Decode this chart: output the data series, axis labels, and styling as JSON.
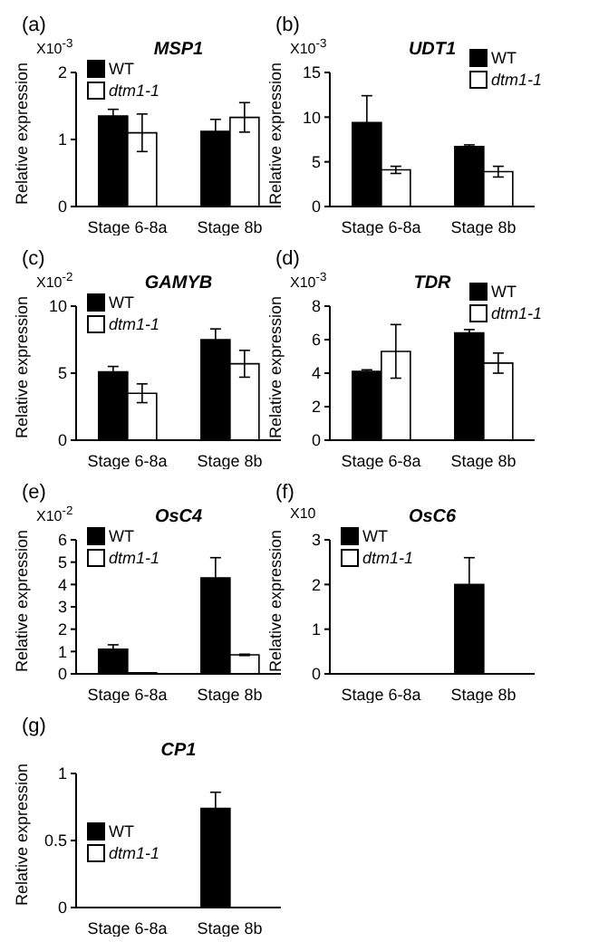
{
  "chart_data": [
    {
      "type": "bar",
      "title": "MSP1",
      "ylabel": "Relative expression",
      "annotations": [
        "(a)",
        "X10$^{-3}$"
      ],
      "categories": [
        "Stage 6-8a",
        "Stage 8b"
      ],
      "ylim": [
        0,
        2
      ],
      "yticks": [
        0,
        1,
        2
      ],
      "legend": "top left",
      "series": [
        {
          "name": "WT",
          "color": "#000000",
          "values": [
            1.35,
            1.12
          ],
          "errors": [
            0.1,
            0.18
          ]
        },
        {
          "name": "dtm1-1",
          "color": "#ffffff",
          "values": [
            1.1,
            1.33
          ],
          "errors": [
            0.28,
            0.22
          ]
        }
      ]
    },
    {
      "type": "bar",
      "title": "UDT1",
      "ylabel": "Relative expression",
      "annotations": [
        "(b)",
        "X10$^{-3}$"
      ],
      "categories": [
        "Stage 6-8a",
        "Stage 8b"
      ],
      "ylim": [
        0,
        15
      ],
      "yticks": [
        0,
        5,
        10,
        15
      ],
      "legend": "top right",
      "series": [
        {
          "name": "WT",
          "color": "#000000",
          "values": [
            9.4,
            6.7
          ],
          "errors": [
            3.0,
            0.2
          ]
        },
        {
          "name": "dtm1-1",
          "color": "#ffffff",
          "values": [
            4.1,
            3.9
          ],
          "errors": [
            0.4,
            0.6
          ]
        }
      ]
    },
    {
      "type": "bar",
      "title": "GAMYB",
      "ylabel": "Relative expression",
      "annotations": [
        "(c)",
        "X10$^{-2}$"
      ],
      "categories": [
        "Stage 6-8a",
        "Stage 8b"
      ],
      "ylim": [
        0,
        10
      ],
      "yticks": [
        0,
        5,
        10
      ],
      "legend": "top left",
      "series": [
        {
          "name": "WT",
          "color": "#000000",
          "values": [
            5.1,
            7.5
          ],
          "errors": [
            0.4,
            0.8
          ]
        },
        {
          "name": "dtm1-1",
          "color": "#ffffff",
          "values": [
            3.5,
            5.7
          ],
          "errors": [
            0.7,
            1.0
          ]
        }
      ]
    },
    {
      "type": "bar",
      "title": "TDR",
      "ylabel": "Relative expression",
      "annotations": [
        "(d)",
        "X10$^{-3}$"
      ],
      "categories": [
        "Stage 6-8a",
        "Stage 8b"
      ],
      "ylim": [
        0,
        8
      ],
      "yticks": [
        0,
        2,
        4,
        6,
        8
      ],
      "legend": "top right",
      "series": [
        {
          "name": "WT",
          "color": "#000000",
          "values": [
            4.1,
            6.4
          ],
          "errors": [
            0.1,
            0.2
          ]
        },
        {
          "name": "dtm1-1",
          "color": "#ffffff",
          "values": [
            5.3,
            4.6
          ],
          "errors": [
            1.6,
            0.6
          ]
        }
      ]
    },
    {
      "type": "bar",
      "title": "OsC4",
      "ylabel": "Relative expression",
      "annotations": [
        "(e)",
        "X10$^{-2}$"
      ],
      "categories": [
        "Stage 6-8a",
        "Stage 8b"
      ],
      "ylim": [
        0,
        6
      ],
      "yticks": [
        0,
        1,
        2,
        3,
        4,
        5,
        6
      ],
      "legend": "top left",
      "series": [
        {
          "name": "WT",
          "color": "#000000",
          "values": [
            1.1,
            4.3
          ],
          "errors": [
            0.2,
            0.9
          ]
        },
        {
          "name": "dtm1-1",
          "color": "#ffffff",
          "values": [
            0.05,
            0.85
          ],
          "errors": [
            null,
            0.03
          ]
        }
      ]
    },
    {
      "type": "bar",
      "title": "OsC6",
      "ylabel": "Relative expression",
      "annotations": [
        "(f)",
        "X10"
      ],
      "categories": [
        "Stage 6-8a",
        "Stage 8b"
      ],
      "ylim": [
        0,
        3
      ],
      "yticks": [
        0,
        1,
        2,
        3
      ],
      "legend": "top left",
      "series": [
        {
          "name": "WT",
          "color": "#000000",
          "values": [
            0,
            2.0
          ],
          "errors": [
            null,
            0.6
          ]
        },
        {
          "name": "dtm1-1",
          "color": "#ffffff",
          "values": [
            0,
            0
          ],
          "errors": [
            null,
            null
          ]
        }
      ]
    },
    {
      "type": "bar",
      "title": "CP1",
      "ylabel": "Relative expression",
      "annotations": [
        "(g)"
      ],
      "categories": [
        "Stage 6-8a",
        "Stage 8b"
      ],
      "ylim": [
        0,
        1
      ],
      "yticks": [
        0,
        0.5,
        1
      ],
      "legend": "left",
      "series": [
        {
          "name": "WT",
          "color": "#000000",
          "values": [
            0,
            0.74
          ],
          "errors": [
            null,
            0.12
          ]
        },
        {
          "name": "dtm1-1",
          "color": "#ffffff",
          "values": [
            0,
            0
          ],
          "errors": [
            null,
            null
          ]
        }
      ]
    }
  ]
}
